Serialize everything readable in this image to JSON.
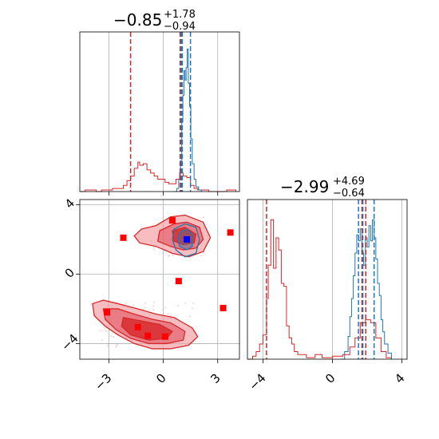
{
  "chart_data": {
    "type": "corner",
    "colors": {
      "red": "#d62728",
      "blue": "#1f77b4",
      "red_fill": "#f4a3a8",
      "red_fill_dark": "#e0505a"
    },
    "titles": [
      {
        "value": "−0.85",
        "sup": "+1.78",
        "sub": "−0.94"
      },
      {
        "value": "−2.99",
        "sup": "+4.69",
        "sub": "−0.64"
      }
    ],
    "x_axis_param0": {
      "range": [
        -4.6,
        4.2
      ],
      "ticks": [
        -3,
        0,
        3
      ],
      "tick_labels": [
        "−3",
        "0",
        "3"
      ]
    },
    "axis_param1": {
      "range": [
        -4.9,
        4.3
      ],
      "ticks": [
        -4,
        0,
        4
      ],
      "tick_labels": [
        "−4",
        "0",
        "4"
      ]
    },
    "grid": true,
    "hist_param0": {
      "red_quantiles": [
        -1.8,
        0.93,
        1.0
      ],
      "blue_quantiles": [
        1.0,
        1.05,
        1.5
      ],
      "red_steps": [
        [
          -4.6,
          0
        ],
        [
          -4.3,
          0.01
        ],
        [
          -4.0,
          0.01
        ],
        [
          -3.7,
          0.0
        ],
        [
          -3.4,
          0.01
        ],
        [
          -3.1,
          0.01
        ],
        [
          -2.8,
          0.02
        ],
        [
          -2.5,
          0.02
        ],
        [
          -2.2,
          0.04
        ],
        [
          -2.0,
          0.07
        ],
        [
          -1.8,
          0.1
        ],
        [
          -1.6,
          0.15
        ],
        [
          -1.4,
          0.19
        ],
        [
          -1.3,
          0.17
        ],
        [
          -1.1,
          0.18
        ],
        [
          -0.9,
          0.14
        ],
        [
          -0.7,
          0.12
        ],
        [
          -0.5,
          0.1
        ],
        [
          -0.3,
          0.08
        ],
        [
          -0.1,
          0.08
        ],
        [
          0.1,
          0.06
        ],
        [
          0.3,
          0.05
        ],
        [
          0.5,
          0.05
        ],
        [
          0.7,
          0.08
        ],
        [
          0.9,
          0.12
        ],
        [
          1.1,
          0.1
        ],
        [
          1.3,
          0.09
        ],
        [
          1.5,
          0.04
        ],
        [
          1.7,
          0.02
        ],
        [
          1.9,
          0.01
        ],
        [
          2.2,
          0.01
        ],
        [
          2.5,
          0.0
        ],
        [
          3.5,
          0.01
        ],
        [
          4.0,
          0
        ]
      ],
      "blue_steps": [
        [
          0.6,
          0
        ],
        [
          0.75,
          0.02
        ],
        [
          0.85,
          0.08
        ],
        [
          0.95,
          0.2
        ],
        [
          1.02,
          0.45
        ],
        [
          1.08,
          0.62
        ],
        [
          1.14,
          0.78
        ],
        [
          1.2,
          0.72
        ],
        [
          1.26,
          0.8
        ],
        [
          1.32,
          0.92
        ],
        [
          1.38,
          0.7
        ],
        [
          1.45,
          0.55
        ],
        [
          1.52,
          0.34
        ],
        [
          1.6,
          0.18
        ],
        [
          1.7,
          0.08
        ],
        [
          1.8,
          0.03
        ],
        [
          1.95,
          0.01
        ],
        [
          2.1,
          0
        ]
      ]
    },
    "hist_param1": {
      "red_quantiles": [
        -3.8,
        1.7,
        1.92
      ],
      "blue_quantiles": [
        1.5,
        1.75,
        2.4
      ],
      "red_steps": [
        [
          -4.9,
          0
        ],
        [
          -4.6,
          0.02
        ],
        [
          -4.4,
          0.05
        ],
        [
          -4.2,
          0.1
        ],
        [
          -4.0,
          0.16
        ],
        [
          -3.8,
          0.4
        ],
        [
          -3.7,
          0.62
        ],
        [
          -3.55,
          0.92
        ],
        [
          -3.4,
          0.6
        ],
        [
          -3.25,
          0.8
        ],
        [
          -3.1,
          0.72
        ],
        [
          -2.95,
          0.5
        ],
        [
          -2.8,
          0.48
        ],
        [
          -2.65,
          0.22
        ],
        [
          -2.5,
          0.14
        ],
        [
          -2.35,
          0.1
        ],
        [
          -2.2,
          0.05
        ],
        [
          -2.0,
          0.03
        ],
        [
          -1.5,
          0.01
        ],
        [
          -1.0,
          0.03
        ],
        [
          -0.6,
          0.01
        ],
        [
          0.0,
          0.02
        ],
        [
          0.6,
          0.03
        ],
        [
          1.0,
          0.08
        ],
        [
          1.3,
          0.14
        ],
        [
          1.6,
          0.24
        ],
        [
          1.9,
          0.26
        ],
        [
          2.2,
          0.24
        ],
        [
          2.5,
          0.14
        ],
        [
          2.8,
          0.05
        ],
        [
          3.1,
          0.01
        ],
        [
          3.4,
          0
        ]
      ],
      "blue_steps": [
        [
          0.5,
          0
        ],
        [
          0.7,
          0.05
        ],
        [
          0.9,
          0.15
        ],
        [
          1.0,
          0.28
        ],
        [
          1.1,
          0.4
        ],
        [
          1.2,
          0.55
        ],
        [
          1.3,
          0.7
        ],
        [
          1.4,
          0.82
        ],
        [
          1.5,
          0.78
        ],
        [
          1.6,
          0.86
        ],
        [
          1.7,
          0.7
        ],
        [
          1.8,
          0.62
        ],
        [
          1.9,
          0.8
        ],
        [
          2.0,
          0.74
        ],
        [
          2.1,
          0.88
        ],
        [
          2.2,
          0.78
        ],
        [
          2.3,
          0.92
        ],
        [
          2.4,
          0.8
        ],
        [
          2.5,
          0.66
        ],
        [
          2.6,
          0.5
        ],
        [
          2.7,
          0.42
        ],
        [
          2.8,
          0.26
        ],
        [
          2.9,
          0.18
        ],
        [
          3.0,
          0.1
        ],
        [
          3.2,
          0.04
        ],
        [
          3.4,
          0
        ]
      ]
    },
    "scatter_2d": {
      "red_squares": [
        [
          -2.2,
          2.1
        ],
        [
          0.5,
          3.1
        ],
        [
          3.7,
          2.4
        ],
        [
          0.85,
          -0.4
        ],
        [
          3.3,
          -1.95
        ],
        [
          -3.1,
          -2.2
        ],
        [
          -1.4,
          -3.05
        ],
        [
          -0.85,
          -3.55
        ],
        [
          0.1,
          -3.6
        ]
      ],
      "blue_squares": [
        [
          1.3,
          2.0
        ]
      ]
    }
  }
}
